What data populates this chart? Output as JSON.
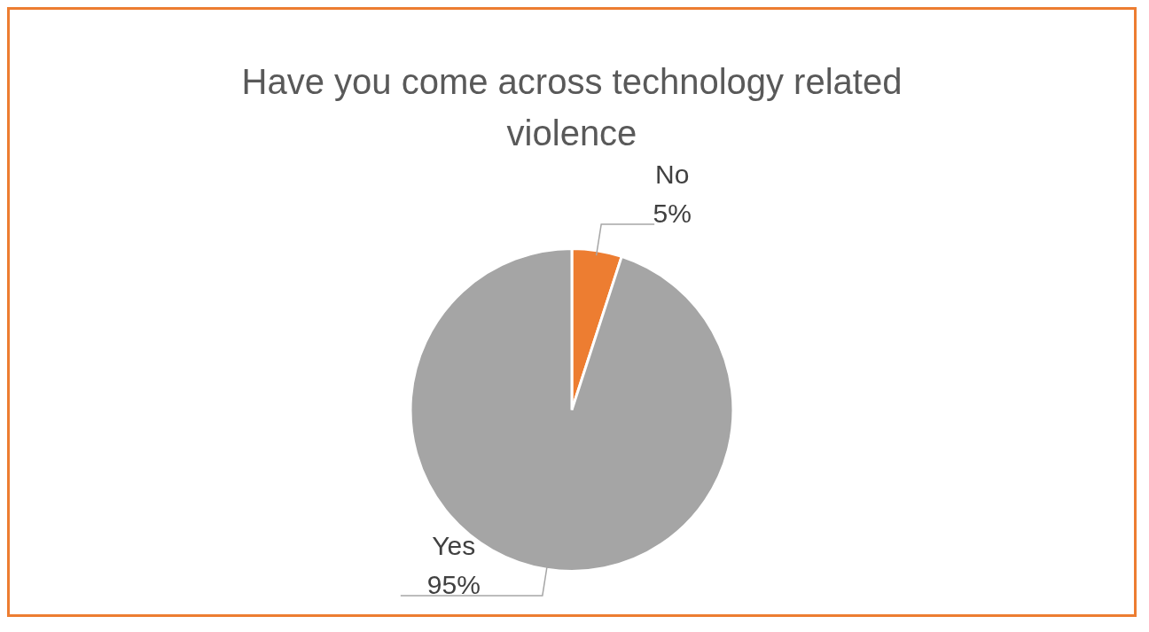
{
  "chart_data": {
    "type": "pie",
    "title": "Have you come across technology related violence",
    "categories": [
      "No",
      "Yes"
    ],
    "values": [
      5,
      95
    ],
    "value_labels": [
      "5%",
      "95%"
    ],
    "colors": [
      "#ed7d31",
      "#a5a5a5"
    ],
    "legend": false
  }
}
